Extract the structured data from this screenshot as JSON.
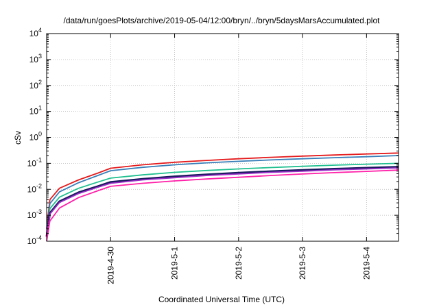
{
  "chart_data": {
    "type": "line",
    "title": "/data/run/goesPlots/archive/2019-05-04/12:00/bryn/../bryn/5daysMarsAccumulated.plot",
    "xlabel": "Coordinated Universal Time (UTC)",
    "ylabel": "cSv",
    "y_scale": "log",
    "ylim": [
      0.0001,
      10000
    ],
    "y_ticks": [
      {
        "value": 0.0001,
        "base": "10",
        "exp": "-4"
      },
      {
        "value": 0.001,
        "base": "10",
        "exp": "-3"
      },
      {
        "value": 0.01,
        "base": "10",
        "exp": "-2"
      },
      {
        "value": 0.1,
        "base": "10",
        "exp": "-1"
      },
      {
        "value": 1,
        "base": "10",
        "exp": "0"
      },
      {
        "value": 10,
        "base": "10",
        "exp": "1"
      },
      {
        "value": 100,
        "base": "10",
        "exp": "2"
      },
      {
        "value": 1000,
        "base": "10",
        "exp": "3"
      },
      {
        "value": 10000,
        "base": "10",
        "exp": "4"
      }
    ],
    "xlim": [
      "2019-04-29 00:00",
      "2019-05-04 12:00"
    ],
    "x_ticks": [
      "2019-4-30",
      "2019-5-1",
      "2019-5-2",
      "2019-5-3",
      "2019-5-4"
    ],
    "x_tick_values": [
      "2019-04-30 00:00",
      "2019-05-01 00:00",
      "2019-05-02 00:00",
      "2019-05-03 00:00",
      "2019-05-04 00:00"
    ],
    "grid": true,
    "legend": "none",
    "x": [
      "2019-04-29 00:00",
      "2019-04-29 01:12",
      "2019-04-29 04:48",
      "2019-04-29 12:00",
      "2019-04-29 19:12",
      "2019-04-30 00:00",
      "2019-04-30 12:00",
      "2019-05-01 00:00",
      "2019-05-01 12:00",
      "2019-05-02 00:00",
      "2019-05-02 12:00",
      "2019-05-03 00:00",
      "2019-05-03 12:00",
      "2019-05-04 00:00",
      "2019-05-04 12:00"
    ],
    "series": [
      {
        "color": "#e41a1c",
        "values": [
          0.0003,
          0.004,
          0.011,
          0.023,
          0.042,
          0.065,
          0.088,
          0.11,
          0.13,
          0.15,
          0.17,
          0.19,
          0.21,
          0.23,
          0.25
        ]
      },
      {
        "color": "#377eb8",
        "values": [
          0.0002,
          0.0028,
          0.008,
          0.018,
          0.034,
          0.052,
          0.07,
          0.088,
          0.105,
          0.12,
          0.135,
          0.15,
          0.165,
          0.18,
          0.2
        ]
      },
      {
        "color": "#1fbf8f",
        "values": [
          0.0002,
          0.0018,
          0.005,
          0.011,
          0.019,
          0.027,
          0.036,
          0.045,
          0.053,
          0.061,
          0.069,
          0.077,
          0.085,
          0.093,
          0.1
        ]
      },
      {
        "color": "#1a1a5e",
        "values": [
          0.00015,
          0.0012,
          0.0034,
          0.0076,
          0.013,
          0.019,
          0.025,
          0.031,
          0.037,
          0.043,
          0.049,
          0.055,
          0.061,
          0.067,
          0.073
        ]
      },
      {
        "color": "#9b30c8",
        "values": [
          0.00015,
          0.0011,
          0.0031,
          0.0069,
          0.012,
          0.017,
          0.023,
          0.028,
          0.034,
          0.039,
          0.045,
          0.05,
          0.056,
          0.061,
          0.067
        ]
      },
      {
        "color": "#ff1fa8",
        "values": [
          0.0001,
          0.0006,
          0.0019,
          0.0048,
          0.0088,
          0.013,
          0.017,
          0.021,
          0.025,
          0.029,
          0.034,
          0.039,
          0.044,
          0.049,
          0.055
        ]
      }
    ]
  }
}
